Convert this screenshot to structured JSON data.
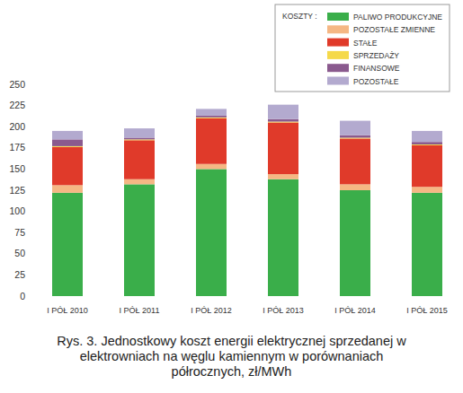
{
  "chart_data": {
    "type": "bar",
    "stacked": true,
    "title": "Rys. 3. Jednostkowy koszt energii elektrycznej sprzedanej w elektrowniach na węglu kamiennym w porównaniach półrocznych, zł/MWh",
    "legend_title": "KOSZTY :",
    "legend": "top-right",
    "grid": false,
    "categories": [
      "I PÓŁ 2010",
      "I PÓŁ 2011",
      "I PÓŁ 2012",
      "I PÓŁ 2013",
      "I PÓŁ 2014",
      "I PÓŁ 2015"
    ],
    "series": [
      {
        "name": "PALIWO PRODUKCYJNE",
        "color": "#3aae4a",
        "values": [
          122,
          132,
          150,
          138,
          125,
          122
        ]
      },
      {
        "name": "POZOSTAŁE ZMIENNE",
        "color": "#f5b784",
        "values": [
          9,
          6,
          6,
          6,
          7,
          7
        ]
      },
      {
        "name": "STAŁE",
        "color": "#e03a2a",
        "values": [
          45,
          46,
          54,
          61,
          54,
          49
        ]
      },
      {
        "name": "SPRZEDAŻY",
        "color": "#f5d94a",
        "values": [
          1,
          1,
          1,
          1,
          1,
          1
        ]
      },
      {
        "name": "FINANSOWE",
        "color": "#8a5a8e",
        "values": [
          8,
          2,
          2,
          3,
          3,
          3
        ]
      },
      {
        "name": "POZOSTAŁE",
        "color": "#b3aacf",
        "values": [
          10,
          11,
          8,
          17,
          17,
          13
        ]
      }
    ],
    "ylim": [
      0,
      250
    ],
    "yticks": [
      0,
      25,
      50,
      75,
      100,
      125,
      150,
      175,
      200,
      225,
      250
    ]
  }
}
